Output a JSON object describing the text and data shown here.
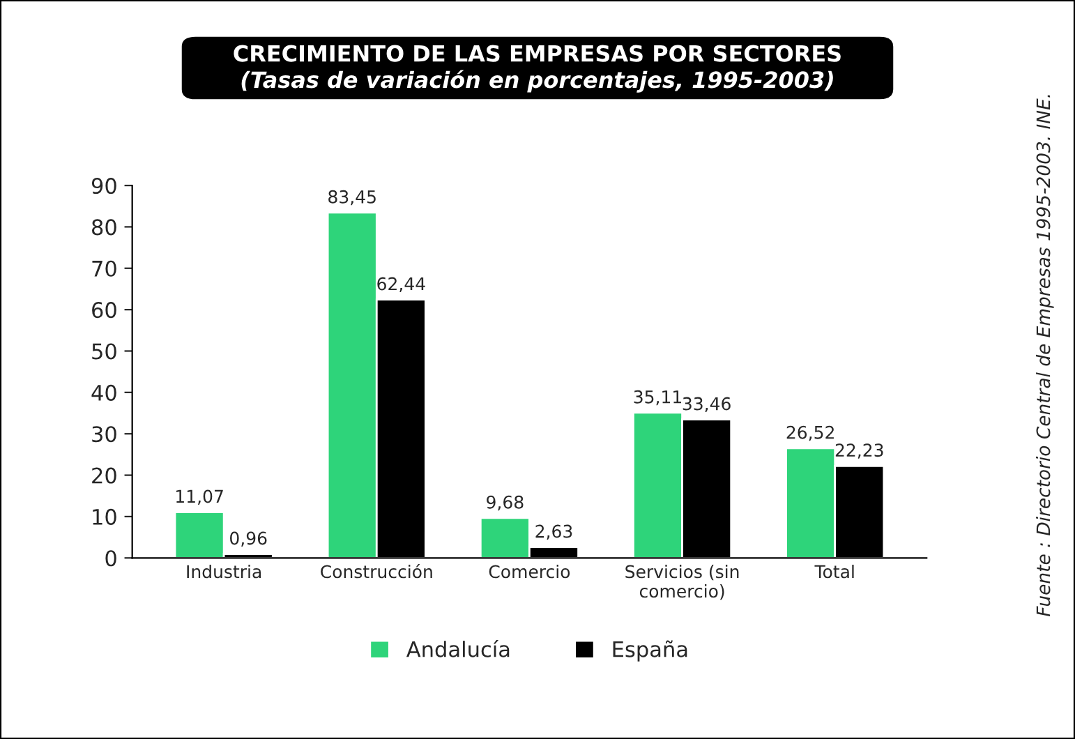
{
  "chart_data": {
    "type": "bar",
    "title": "CRECIMIENTO DE LAS EMPRESAS POR SECTORES",
    "subtitle": "(Tasas de variación en porcentajes, 1995-2003)",
    "categories": [
      "Industria",
      "Construcción",
      "Comercio",
      "Servicios (sin\ncomercio)",
      "Total"
    ],
    "series": [
      {
        "name": "Andalucía",
        "color": "#2ed47a",
        "values": [
          11.07,
          83.45,
          9.68,
          35.11,
          26.52
        ],
        "value_labels": [
          "11,07",
          "83,45",
          "9,68",
          "35,11",
          "26,52"
        ]
      },
      {
        "name": "España",
        "color": "#000000",
        "values": [
          0.96,
          62.44,
          2.63,
          33.46,
          22.23
        ],
        "value_labels": [
          "0,96",
          "62,44",
          "2,63",
          "33,46",
          "22,23"
        ]
      }
    ],
    "ylim": [
      0,
      90
    ],
    "yticks": [
      0,
      10,
      20,
      30,
      40,
      50,
      60,
      70,
      80,
      90
    ],
    "grid": false,
    "legend": "bottom",
    "annotations": [
      "Fuente : Directorio Central de Empresas 1995-2003. INE."
    ]
  }
}
